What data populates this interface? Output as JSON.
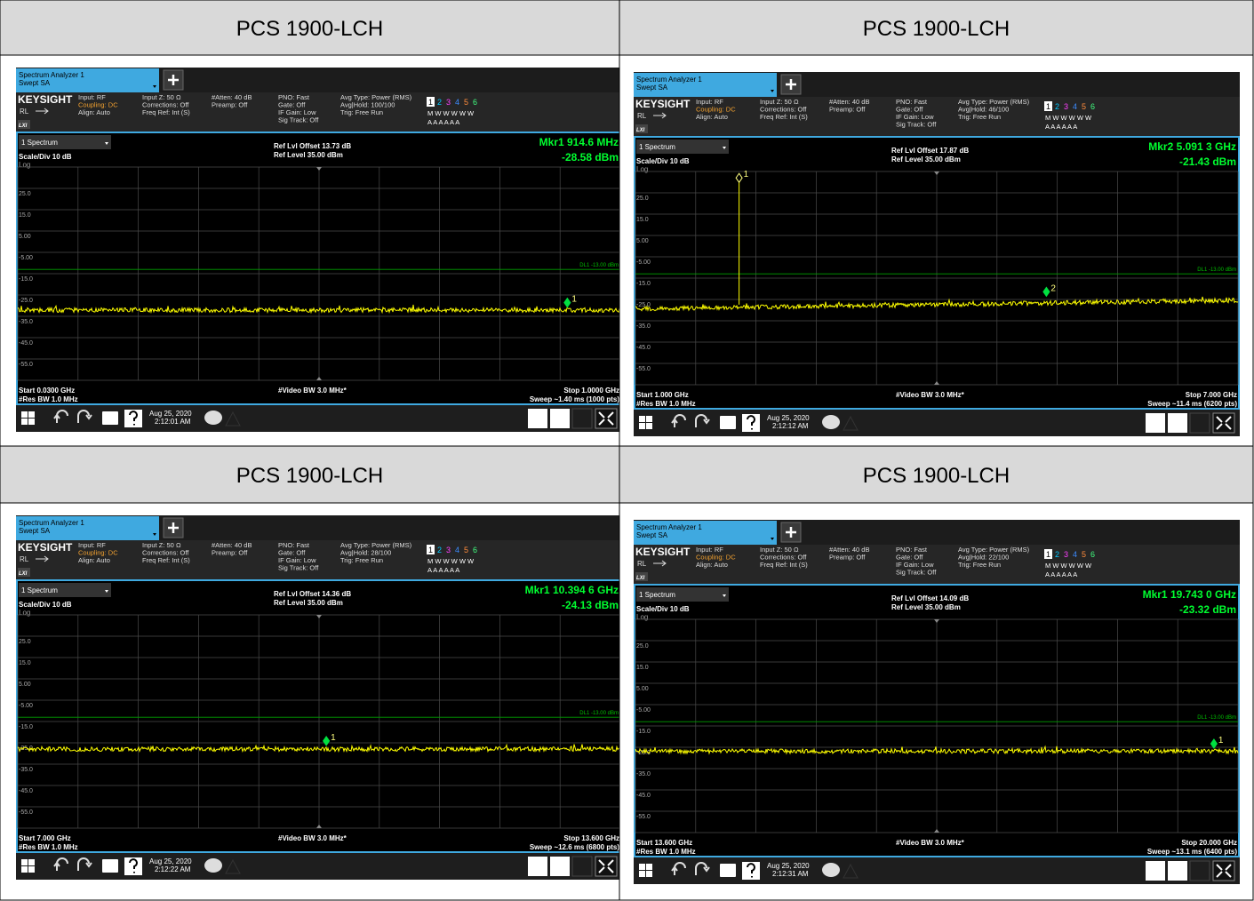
{
  "cells": [
    {
      "title": "PCS 1900-LCH",
      "screen": {
        "tab": [
          "Spectrum Analyzer 1",
          "Swept SA"
        ],
        "brand": "KEYSIGHT",
        "rl": "RL",
        "lxi": "LXI",
        "info": [
          [
            "Input: RF",
            "Coupling: DC",
            "Align: Auto"
          ],
          [
            "Input Z: 50 Ω",
            "Corrections: Off",
            "Freq Ref: Int (S)"
          ],
          [
            "#Atten: 40 dB",
            "Preamp: Off"
          ],
          [
            "PNO: Fast",
            "Gate: Off",
            "IF Gain: Low",
            "Sig Track: Off"
          ],
          [
            "Avg Type: Power (RMS)",
            "Avg|Hold: 100/100",
            "Trig: Free Run"
          ]
        ],
        "trace_numbers": [
          "1",
          "2",
          "3",
          "4",
          "5",
          "6"
        ],
        "trace_types": "M W W W W W",
        "trace_detectors": "A A A A A A",
        "window": "1 Spectrum",
        "scale": "Scale/Div 10 dB",
        "log": "Log",
        "offset": "Ref Lvl Offset 13.73 dB",
        "ref": "Ref Level 35.00 dBm",
        "marker": {
          "name": "Mkr1",
          "freq": "914.6 MHz",
          "amp": "-28.58 dBm"
        },
        "marker_labels": [
          "1"
        ],
        "yticks": [
          "25.0",
          "15.0",
          "5.00",
          "-5.00",
          "-15.0",
          "-25.0",
          "-35.0",
          "-45.0",
          "-55.0"
        ],
        "dl": "DL1 -13.00 dBm",
        "start": "Start 0.0300 GHz",
        "rbw": "#Res BW 1.0 MHz",
        "vbw": "#Video BW 3.0 MHz*",
        "stop": "Stop 1.0000 GHz",
        "sweep": "Sweep ~1.40 ms (1000 pts)",
        "date": "Aug 25, 2020",
        "time": "2:12:01 AM"
      }
    },
    {
      "title": "PCS 1900-LCH",
      "screen": {
        "tab": [
          "Spectrum Analyzer 1",
          "Swept SA"
        ],
        "brand": "KEYSIGHT",
        "rl": "RL",
        "lxi": "LXI",
        "info": [
          [
            "Input: RF",
            "Coupling: DC",
            "Align: Auto"
          ],
          [
            "Input Z: 50 Ω",
            "Corrections: Off",
            "Freq Ref: Int (S)"
          ],
          [
            "#Atten: 40 dB",
            "Preamp: Off"
          ],
          [
            "PNO: Fast",
            "Gate: Off",
            "IF Gain: Low",
            "Sig Track: Off"
          ],
          [
            "Avg Type: Power (RMS)",
            "Avg|Hold: 46/100",
            "Trig: Free Run"
          ]
        ],
        "trace_numbers": [
          "1",
          "2",
          "3",
          "4",
          "5",
          "6"
        ],
        "trace_types": "M W W W W W",
        "trace_detectors": "A A A A A A",
        "window": "1 Spectrum",
        "scale": "Scale/Div 10 dB",
        "log": "Log",
        "offset": "Ref Lvl Offset 17.87 dB",
        "ref": "Ref Level 35.00 dBm",
        "marker": {
          "name": "Mkr2",
          "freq": "5.091 3 GHz",
          "amp": "-21.43 dBm"
        },
        "marker_labels": [
          "1",
          "2"
        ],
        "yticks": [
          "25.0",
          "15.0",
          "5.00",
          "-5.00",
          "-15.0",
          "-25.0",
          "-35.0",
          "-45.0",
          "-55.0"
        ],
        "dl": "DL1 -13.00 dBm",
        "start": "Start 1.000 GHz",
        "rbw": "#Res BW 1.0 MHz",
        "vbw": "#Video BW 3.0 MHz*",
        "stop": "Stop 7.000 GHz",
        "sweep": "Sweep ~11.4 ms (6200 pts)",
        "date": "Aug 25, 2020",
        "time": "2:12:12 AM"
      }
    },
    {
      "title": "PCS 1900-LCH",
      "screen": {
        "tab": [
          "Spectrum Analyzer 1",
          "Swept SA"
        ],
        "brand": "KEYSIGHT",
        "rl": "RL",
        "lxi": "LXI",
        "info": [
          [
            "Input: RF",
            "Coupling: DC",
            "Align: Auto"
          ],
          [
            "Input Z: 50 Ω",
            "Corrections: Off",
            "Freq Ref: Int (S)"
          ],
          [
            "#Atten: 40 dB",
            "Preamp: Off"
          ],
          [
            "PNO: Fast",
            "Gate: Off",
            "IF Gain: Low",
            "Sig Track: Off"
          ],
          [
            "Avg Type: Power (RMS)",
            "Avg|Hold: 28/100",
            "Trig: Free Run"
          ]
        ],
        "trace_numbers": [
          "1",
          "2",
          "3",
          "4",
          "5",
          "6"
        ],
        "trace_types": "M W W W W W",
        "trace_detectors": "A A A A A A",
        "window": "1 Spectrum",
        "scale": "Scale/Div 10 dB",
        "log": "Log",
        "offset": "Ref Lvl Offset 14.36 dB",
        "ref": "Ref Level 35.00 dBm",
        "marker": {
          "name": "Mkr1",
          "freq": "10.394 6 GHz",
          "amp": "-24.13 dBm"
        },
        "marker_labels": [
          "1"
        ],
        "yticks": [
          "25.0",
          "15.0",
          "5.00",
          "-5.00",
          "-15.0",
          "-25.0",
          "-35.0",
          "-45.0",
          "-55.0"
        ],
        "dl": "DL1 -13.00 dBm",
        "start": "Start 7.000 GHz",
        "rbw": "#Res BW 1.0 MHz",
        "vbw": "#Video BW 3.0 MHz*",
        "stop": "Stop 13.600 GHz",
        "sweep": "Sweep ~12.6 ms (6800 pts)",
        "date": "Aug 25, 2020",
        "time": "2:12:22 AM"
      }
    },
    {
      "title": "PCS 1900-LCH",
      "screen": {
        "tab": [
          "Spectrum Analyzer 1",
          "Swept SA"
        ],
        "brand": "KEYSIGHT",
        "rl": "RL",
        "lxi": "LXI",
        "info": [
          [
            "Input: RF",
            "Coupling: DC",
            "Align: Auto"
          ],
          [
            "Input Z: 50 Ω",
            "Corrections: Off",
            "Freq Ref: Int (S)"
          ],
          [
            "#Atten: 40 dB",
            "Preamp: Off"
          ],
          [
            "PNO: Fast",
            "Gate: Off",
            "IF Gain: Low",
            "Sig Track: Off"
          ],
          [
            "Avg Type: Power (RMS)",
            "Avg|Hold: 22/100",
            "Trig: Free Run"
          ]
        ],
        "trace_numbers": [
          "1",
          "2",
          "3",
          "4",
          "5",
          "6"
        ],
        "trace_types": "M W W W W W",
        "trace_detectors": "A A A A A A",
        "window": "1 Spectrum",
        "scale": "Scale/Div 10 dB",
        "log": "Log",
        "offset": "Ref Lvl Offset 14.09 dB",
        "ref": "Ref Level 35.00 dBm",
        "marker": {
          "name": "Mkr1",
          "freq": "19.743 0 GHz",
          "amp": "-23.32 dBm"
        },
        "marker_labels": [
          "1"
        ],
        "yticks": [
          "25.0",
          "15.0",
          "5.00",
          "-5.00",
          "-15.0",
          "-25.0",
          "-35.0",
          "-45.0",
          "-55.0"
        ],
        "dl": "DL1 -13.00 dBm",
        "start": "Start 13.600 GHz",
        "rbw": "#Res BW 1.0 MHz",
        "vbw": "#Video BW 3.0 MHz*",
        "stop": "Stop 20.000 GHz",
        "sweep": "Sweep ~13.1 ms (6400 pts)",
        "date": "Aug 25, 2020",
        "time": "2:12:31 AM"
      }
    }
  ]
}
